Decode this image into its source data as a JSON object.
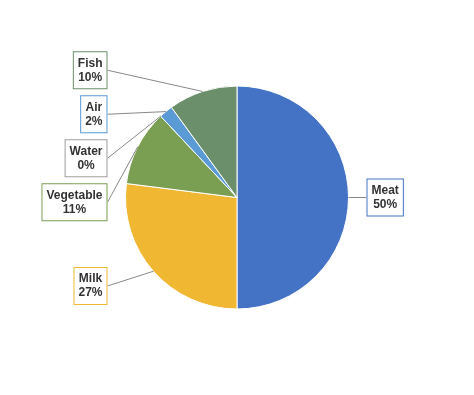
{
  "chart_data": {
    "type": "pie",
    "categories": [
      "Meat",
      "Milk",
      "Vegetable",
      "Water",
      "Air",
      "Fish"
    ],
    "values": [
      50,
      27,
      11,
      0,
      2,
      10
    ],
    "value_labels": [
      "50%",
      "27%",
      "11%",
      "0%",
      "2%",
      "10%"
    ],
    "colors": [
      "#4472c4",
      "#f0b832",
      "#7a9e52",
      "#9e9e9e",
      "#5b9bd5",
      "#6b8e6b"
    ],
    "data_labels": true
  }
}
